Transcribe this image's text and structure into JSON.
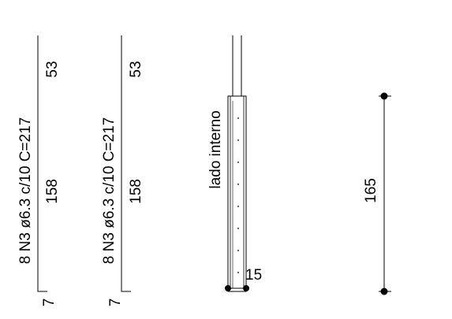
{
  "bars": [
    {
      "label": "8 N3 ø6.3 c/10 C=217",
      "seg_top": "53",
      "seg_mid": "158",
      "seg_end": "7"
    },
    {
      "label": "8 N3 ø6.3 c/10 C=217",
      "seg_top": "53",
      "seg_mid": "158",
      "seg_end": "7"
    }
  ],
  "section": {
    "side_label": "lado interno",
    "cover_dim": "15"
  },
  "dimension": {
    "value": "165"
  },
  "colors": {
    "line": "#000000",
    "background": "#ffffff"
  }
}
